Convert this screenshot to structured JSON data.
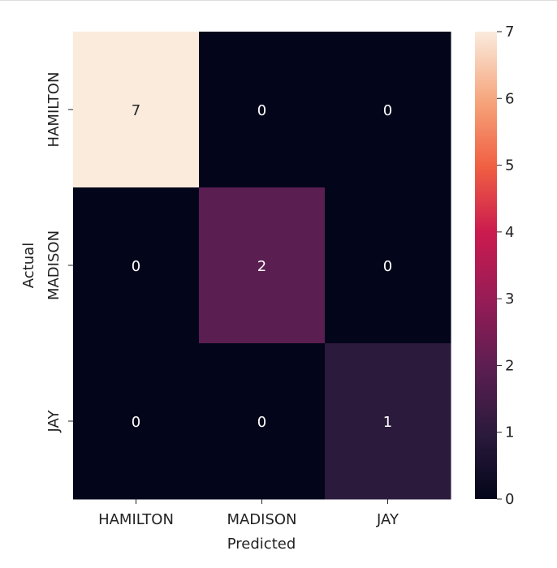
{
  "chart_data": {
    "type": "heatmap",
    "title": "",
    "xlabel": "Predicted",
    "ylabel": "Actual",
    "x_categories": [
      "HAMILTON",
      "MADISON",
      "JAY"
    ],
    "y_categories": [
      "HAMILTON",
      "MADISON",
      "JAY"
    ],
    "values": [
      [
        7,
        0,
        0
      ],
      [
        0,
        2,
        0
      ],
      [
        0,
        0,
        1
      ]
    ],
    "colorbar": {
      "range": [
        0,
        7
      ],
      "ticks": [
        "0",
        "1",
        "2",
        "3",
        "4",
        "5",
        "6",
        "7"
      ]
    },
    "colormap": "rocket",
    "annotations": true
  }
}
